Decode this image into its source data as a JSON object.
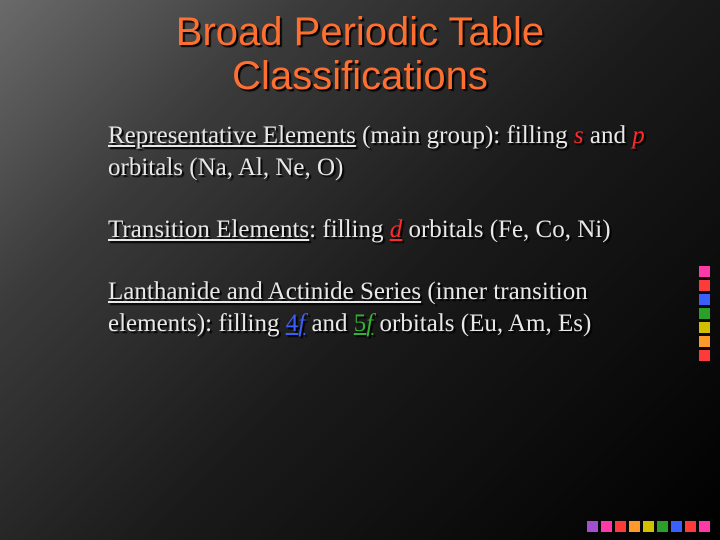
{
  "colors": {
    "title": "#ff7030",
    "body": "#e8e8e8",
    "accent_red": "#ff2a2a",
    "accent_green": "#33b233",
    "accent_blue": "#3a5fff"
  },
  "title": {
    "line1": "Broad Periodic Table",
    "line2": "Classifications"
  },
  "p1": {
    "t1": "Representative Elements",
    "t2": " (main group):  filling ",
    "t3": "s",
    "t4": " and ",
    "t5": "p",
    "t6": " orbitals (Na, Al, Ne, O)"
  },
  "p2": {
    "t1": "Transition Elements",
    "t2": ":  filling ",
    "t3": "d",
    "t4": " orbitals (Fe, Co, Ni)"
  },
  "p3": {
    "t1": "Lanthanide and Actinide Series",
    "t2": " (inner transition elements):  filling ",
    "t3": "4",
    "t4": "f",
    "t5": " and ",
    "t6": "5",
    "t7": "f",
    "t8": " orbitals (Eu, Am, Es)"
  },
  "decor_colors_v": [
    "#ff3aa8",
    "#ff3a3a",
    "#3a5fff",
    "#2aa02a",
    "#d0c000",
    "#ff9a2a",
    "#ff3a3a"
  ],
  "decor_colors_h": [
    "#ff3aa8",
    "#ff3a3a",
    "#3a5fff",
    "#2aa02a",
    "#d0c000",
    "#ff9a2a",
    "#ff3a3a",
    "#ff3aa8",
    "#a050d0"
  ]
}
